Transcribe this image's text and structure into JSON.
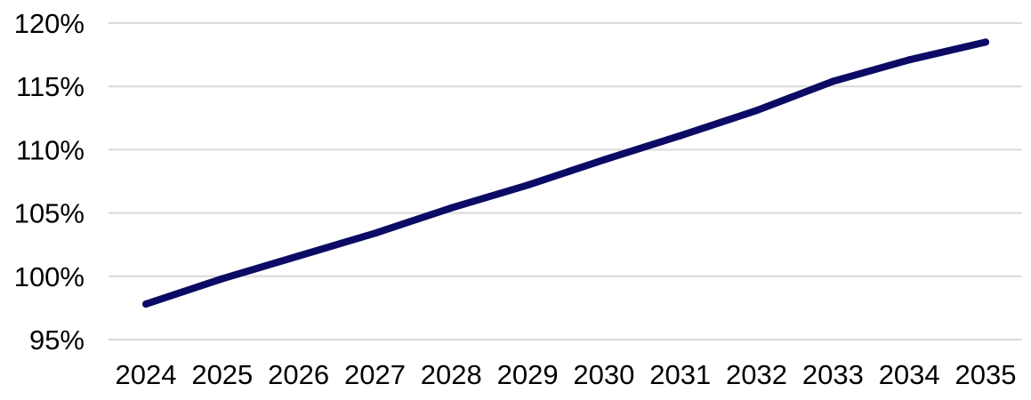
{
  "chart_data": {
    "type": "line",
    "title": "",
    "xlabel": "",
    "ylabel": "",
    "categories": [
      "2024",
      "2025",
      "2026",
      "2027",
      "2028",
      "2029",
      "2030",
      "2031",
      "2032",
      "2033",
      "2034",
      "2035"
    ],
    "series": [
      {
        "values": [
          97.8,
          99.8,
          101.6,
          103.4,
          105.4,
          107.2,
          109.2,
          111.1,
          113.1,
          115.4,
          117.1,
          118.5
        ],
        "color": "#0b0b66"
      }
    ],
    "ylim": [
      95,
      120
    ],
    "yticks": [
      95,
      100,
      105,
      110,
      115,
      120
    ],
    "ytick_labels": [
      "95%",
      "100%",
      "105%",
      "110%",
      "115%",
      "120%"
    ],
    "grid": true,
    "legend": "none"
  }
}
